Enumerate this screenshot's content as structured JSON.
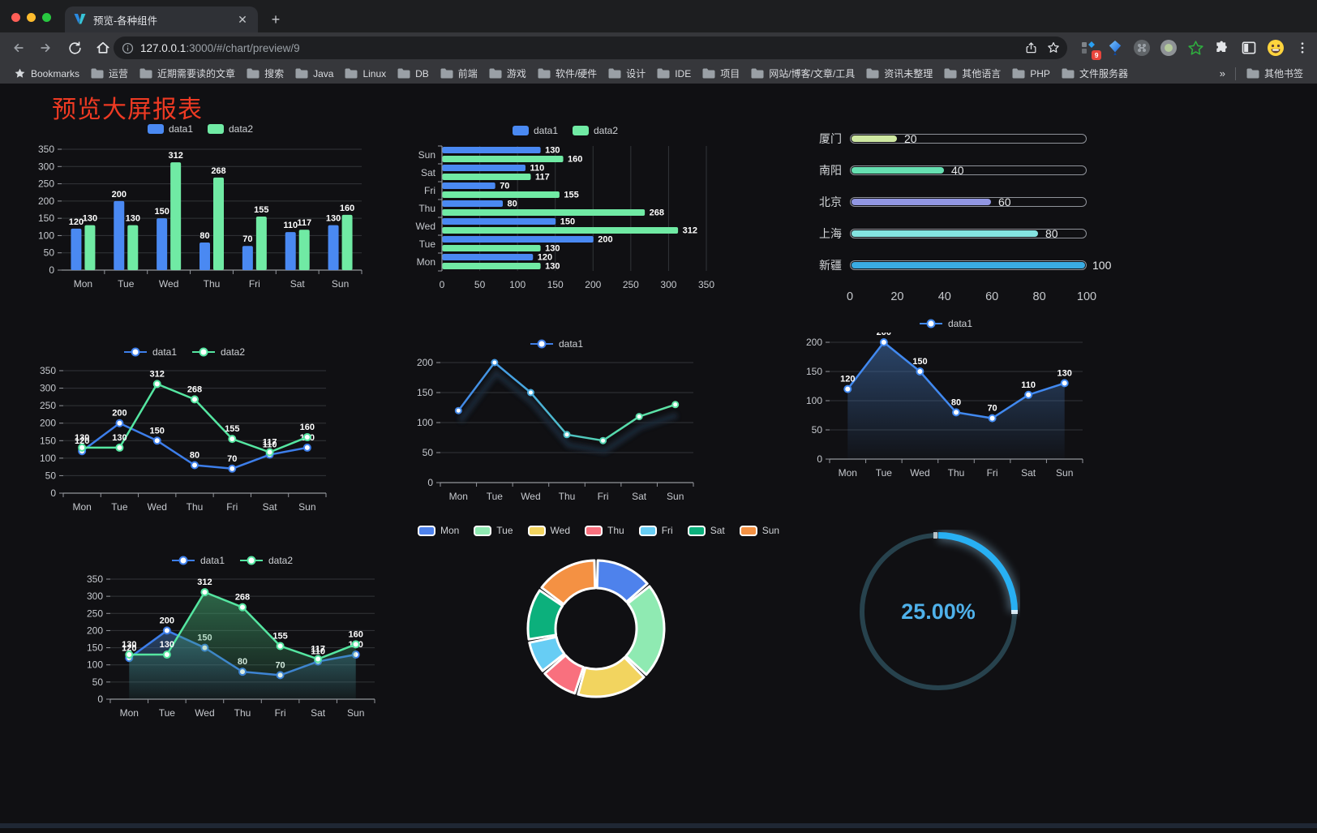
{
  "browser": {
    "tab_title": "预览-各种组件",
    "url_host": "127.0.0.1",
    "url_rest": ":3000/#/chart/preview/9",
    "bookmarks_label": "Bookmarks",
    "bookmarks": [
      "运营",
      "近期需要读的文章",
      "搜索",
      "Java",
      "Linux",
      "DB",
      "前端",
      "游戏",
      "软件/硬件",
      "设计",
      "IDE",
      "项目",
      "网站/博客/文章/工具",
      "资讯未整理",
      "其他语言",
      "PHP",
      "文件服务器"
    ],
    "overflow_chevron": "»",
    "other_bookmarks": "其他书签",
    "extension_badge": "9",
    "new_tab_plus": "+",
    "close_glyph": "✕"
  },
  "page": {
    "title": "预览大屏报表",
    "title_color": "#ee3a23"
  },
  "chart_data": [
    {
      "id": "grouped-bar",
      "type": "bar",
      "legend_style": "rect",
      "categories": [
        "Mon",
        "Tue",
        "Wed",
        "Thu",
        "Fri",
        "Sat",
        "Sun"
      ],
      "series": [
        {
          "name": "data1",
          "color": "#4a89f2",
          "values": [
            120,
            200,
            150,
            80,
            70,
            110,
            130
          ]
        },
        {
          "name": "data2",
          "color": "#70eaa4",
          "values": [
            130,
            130,
            312,
            268,
            155,
            117,
            160
          ]
        }
      ],
      "ylim": [
        0,
        350
      ],
      "ystep": 50,
      "grid": true
    },
    {
      "id": "horizontal-bar",
      "type": "hbar",
      "legend_style": "rect",
      "categories_bottom_to_top": [
        "Mon",
        "Tue",
        "Wed",
        "Thu",
        "Fri",
        "Sat",
        "Sun"
      ],
      "series": [
        {
          "name": "data1",
          "color": "#4a89f2",
          "values": [
            120,
            200,
            150,
            80,
            70,
            110,
            130
          ]
        },
        {
          "name": "data2",
          "color": "#70eaa4",
          "values": [
            130,
            130,
            312,
            268,
            155,
            117,
            160
          ]
        }
      ],
      "xlim": [
        0,
        350
      ],
      "xstep": 50
    },
    {
      "id": "city-progress",
      "type": "progress",
      "max": 100,
      "axis_ticks": [
        0,
        20,
        40,
        60,
        80,
        100
      ],
      "items": [
        {
          "label": "厦门",
          "value": 20,
          "color": "#cfe8a2"
        },
        {
          "label": "南阳",
          "value": 40,
          "color": "#66dfb1"
        },
        {
          "label": "北京",
          "value": 60,
          "color": "#9196e2"
        },
        {
          "label": "上海",
          "value": 80,
          "color": "#84e3e0"
        },
        {
          "label": "新疆",
          "value": 100,
          "color": "#3aabe2"
        }
      ]
    },
    {
      "id": "line-two-series",
      "type": "line",
      "legend_style": "line",
      "labels": true,
      "marker_r": 4,
      "categories": [
        "Mon",
        "Tue",
        "Wed",
        "Thu",
        "Fri",
        "Sat",
        "Sun"
      ],
      "series": [
        {
          "name": "data1",
          "color": "#3d7eea",
          "values": [
            120,
            200,
            150,
            80,
            70,
            110,
            130
          ]
        },
        {
          "name": "data2",
          "color": "#55e6a1",
          "values": [
            130,
            130,
            312,
            268,
            155,
            117,
            160
          ]
        }
      ],
      "ylim": [
        0,
        350
      ],
      "ystep": 50
    },
    {
      "id": "gradient-line",
      "type": "line",
      "legend_style": "line",
      "labels": false,
      "marker_r": 3.5,
      "shadow": true,
      "categories": [
        "Mon",
        "Tue",
        "Wed",
        "Thu",
        "Fri",
        "Sat",
        "Sun"
      ],
      "series": [
        {
          "name": "data1",
          "color": "#3f7de6",
          "gradient": [
            "#3f7de6",
            "#48a8e0",
            "#55d8ae",
            "#60e8a0"
          ],
          "values": [
            120,
            200,
            150,
            80,
            70,
            110,
            130
          ]
        }
      ],
      "ylim": [
        0,
        200
      ],
      "ystep": 50
    },
    {
      "id": "area-line",
      "type": "line",
      "legend_style": "line",
      "labels": true,
      "marker_r": 4,
      "categories": [
        "Mon",
        "Tue",
        "Wed",
        "Thu",
        "Fri",
        "Sat",
        "Sun"
      ],
      "series": [
        {
          "name": "data1",
          "color": "#4189f0",
          "values": [
            120,
            200,
            150,
            80,
            70,
            110,
            130
          ],
          "area": [
            "rgba(64,112,176,0.55)",
            "rgba(64,112,176,0.03)"
          ]
        }
      ],
      "ylim": [
        0,
        200
      ],
      "ystep": 50
    },
    {
      "id": "two-area-line",
      "type": "line",
      "legend_style": "line",
      "labels": true,
      "marker_r": 4,
      "categories": [
        "Mon",
        "Tue",
        "Wed",
        "Thu",
        "Fri",
        "Sat",
        "Sun"
      ],
      "series": [
        {
          "name": "data1",
          "color": "#3d7eea",
          "values": [
            120,
            200,
            150,
            80,
            70,
            110,
            130
          ],
          "area": [
            "rgba(62,110,172,0.55)",
            "rgba(62,110,172,0.04)"
          ]
        },
        {
          "name": "data2",
          "color": "#55e6a1",
          "values": [
            130,
            130,
            312,
            268,
            155,
            117,
            160
          ],
          "area": [
            "rgba(64,158,106,0.6)",
            "rgba(64,158,106,0.05)"
          ]
        }
      ],
      "ylim": [
        0,
        350
      ],
      "ystep": 50
    },
    {
      "id": "donut",
      "type": "pie",
      "legend_style": "rect-border",
      "items": [
        {
          "name": "Mon",
          "value": 120,
          "color": "#4e82ec"
        },
        {
          "name": "Tue",
          "value": 200,
          "color": "#8feab2"
        },
        {
          "name": "Wed",
          "value": 150,
          "color": "#f2d45f"
        },
        {
          "name": "Thu",
          "value": 80,
          "color": "#f9707e"
        },
        {
          "name": "Fri",
          "value": 70,
          "color": "#67cdf4"
        },
        {
          "name": "Sat",
          "value": 110,
          "color": "#0cb07c"
        },
        {
          "name": "Sun",
          "value": 130,
          "color": "#f49143"
        }
      ]
    },
    {
      "id": "gauge",
      "type": "gauge",
      "value_text": "25.00%",
      "percent": 25,
      "color": "#28b0f3",
      "track_color": "#27424d",
      "text_color": "#4fb1ea"
    }
  ]
}
